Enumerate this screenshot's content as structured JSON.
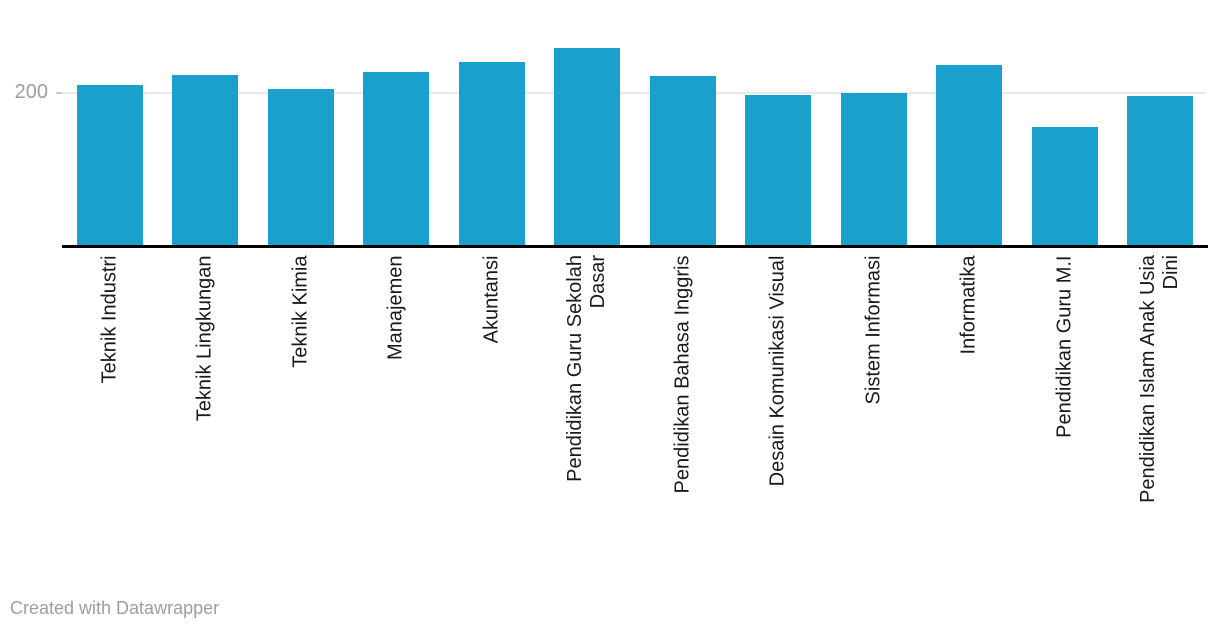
{
  "chart_data": {
    "type": "bar",
    "categories": [
      "Teknik Industri",
      "Teknik Lingkungan",
      "Teknik Kimia",
      "Manajemen",
      "Akuntansi",
      "Pendidikan Guru Sekolah Dasar",
      "Pendidikan Bahasa Inggris",
      "Desain Komunikasi Visual",
      "Sistem Informasi",
      "Informatika",
      "Pendidikan Guru M.I",
      "Pendidikan Islam Anak Usia Dini"
    ],
    "label_lines": [
      [
        "Teknik Industri"
      ],
      [
        "Teknik Lingkungan"
      ],
      [
        "Teknik Kimia"
      ],
      [
        "Manajemen"
      ],
      [
        "Akuntansi"
      ],
      [
        "Pendidikan Guru Sekolah",
        "Dasar"
      ],
      [
        "Pendidikan Bahasa Inggris"
      ],
      [
        "Desain Komunikasi Visual"
      ],
      [
        "Sistem Informasi"
      ],
      [
        "Informatika"
      ],
      [
        "Pendidikan Guru M.I"
      ],
      [
        "Pendidikan Islam Anak Usia",
        "Dini"
      ]
    ],
    "values": [
      210,
      223,
      205,
      226,
      239,
      258,
      221,
      197,
      199,
      236,
      156,
      195
    ],
    "title": "",
    "xlabel": "",
    "ylabel": "",
    "ylim": [
      0,
      320
    ],
    "yticks": [
      200
    ],
    "grid": "single horizontal gridline at 200",
    "legend": "none",
    "bar_color": "#19a0cc"
  },
  "axis": {
    "y_tick_label": "200"
  },
  "footer": {
    "credit": "Created with Datawrapper"
  },
  "colors": {
    "bar": "#19a0cc",
    "axis_line": "#000000",
    "gridline": "#e9e9e9",
    "tick": "#c8c8c8",
    "y_label": "#9e9e9e",
    "x_label": "#1a1a1a",
    "credit": "#9e9e9e"
  }
}
